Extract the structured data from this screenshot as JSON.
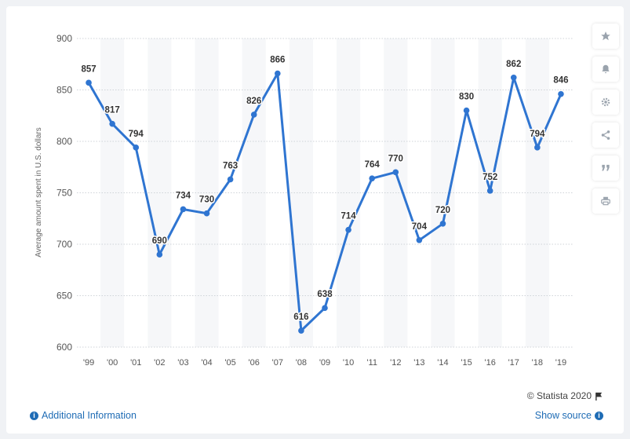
{
  "chart_data": {
    "type": "line",
    "x": [
      "'99",
      "'00",
      "'01",
      "'02",
      "'03",
      "'04",
      "'05",
      "'06",
      "'07",
      "'08",
      "'09",
      "'10",
      "'11",
      "'12",
      "'13",
      "'14",
      "'15",
      "'16",
      "'17",
      "'18",
      "'19"
    ],
    "series": [
      {
        "values": [
          857,
          817,
          794,
          690,
          734,
          730,
          763,
          826,
          866,
          616,
          638,
          714,
          764,
          770,
          704,
          720,
          830,
          752,
          862,
          794,
          846
        ]
      }
    ],
    "ylabel": "Average amount spent in U.S. dollars",
    "xlabel": "",
    "ylim": [
      600,
      900
    ],
    "yticks": [
      600,
      650,
      700,
      750,
      800,
      850,
      900
    ],
    "grid": true,
    "data_labels": true,
    "line_color": "#2f75d1",
    "band_color": "#f6f7f9"
  },
  "footer": {
    "credit": "© Statista 2020",
    "additional_info": "Additional Information",
    "show_source": "Show source"
  },
  "toolbar": {
    "icons": [
      "star-icon",
      "bell-icon",
      "gear-icon",
      "share-icon",
      "quote-icon",
      "print-icon"
    ]
  }
}
